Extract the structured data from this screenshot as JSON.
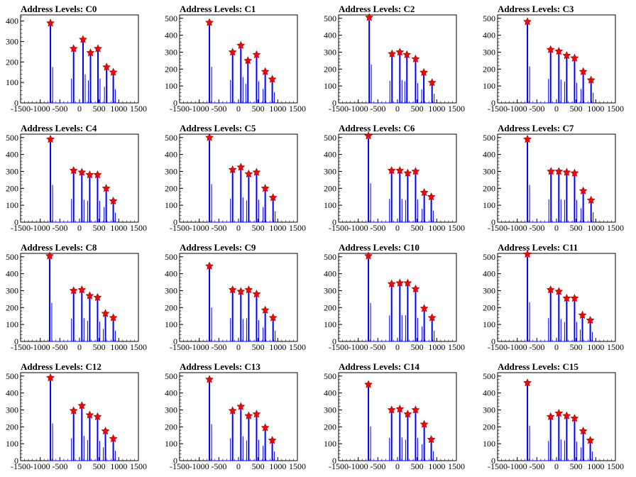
{
  "chart_data": [
    {
      "type": "line",
      "title": "Address Levels: C0",
      "xlim": [
        -1500,
        1500
      ],
      "ylim": [
        0,
        430
      ],
      "xticks": [
        -1500,
        -1000,
        -500,
        0,
        500,
        1000,
        1500
      ],
      "yticks": [
        0,
        100,
        200,
        300,
        400
      ],
      "peaks": [
        {
          "x": -740,
          "y": 390
        },
        {
          "x": -150,
          "y": 265
        },
        {
          "x": 90,
          "y": 310
        },
        {
          "x": 280,
          "y": 245
        },
        {
          "x": 470,
          "y": 265
        },
        {
          "x": 690,
          "y": 175
        },
        {
          "x": 860,
          "y": 150
        }
      ]
    },
    {
      "type": "line",
      "title": "Address Levels: C1",
      "xlim": [
        -1500,
        1500
      ],
      "ylim": [
        0,
        520
      ],
      "xticks": [
        -1500,
        -1000,
        -500,
        0,
        500,
        1000,
        1500
      ],
      "yticks": [
        0,
        100,
        200,
        300,
        400,
        500
      ],
      "peaks": [
        {
          "x": -740,
          "y": 475
        },
        {
          "x": -150,
          "y": 300
        },
        {
          "x": 60,
          "y": 340
        },
        {
          "x": 240,
          "y": 250
        },
        {
          "x": 460,
          "y": 285
        },
        {
          "x": 680,
          "y": 185
        },
        {
          "x": 860,
          "y": 140
        }
      ]
    },
    {
      "type": "line",
      "title": "Address Levels: C2",
      "xlim": [
        -1500,
        1500
      ],
      "ylim": [
        0,
        520
      ],
      "xticks": [
        -1500,
        -1000,
        -500,
        0,
        500,
        1000,
        1500
      ],
      "yticks": [
        0,
        100,
        200,
        300,
        400,
        500
      ],
      "peaks": [
        {
          "x": -720,
          "y": 505
        },
        {
          "x": -140,
          "y": 290
        },
        {
          "x": 60,
          "y": 300
        },
        {
          "x": 240,
          "y": 285
        },
        {
          "x": 460,
          "y": 260
        },
        {
          "x": 670,
          "y": 180
        },
        {
          "x": 880,
          "y": 120
        }
      ]
    },
    {
      "type": "line",
      "title": "Address Levels: C3",
      "xlim": [
        -1500,
        1500
      ],
      "ylim": [
        0,
        520
      ],
      "xticks": [
        -1500,
        -1000,
        -500,
        0,
        500,
        1000,
        1500
      ],
      "yticks": [
        0,
        100,
        200,
        300,
        400,
        500
      ],
      "peaks": [
        {
          "x": -740,
          "y": 480
        },
        {
          "x": -150,
          "y": 315
        },
        {
          "x": 60,
          "y": 305
        },
        {
          "x": 260,
          "y": 280
        },
        {
          "x": 460,
          "y": 265
        },
        {
          "x": 680,
          "y": 185
        },
        {
          "x": 880,
          "y": 135
        }
      ]
    },
    {
      "type": "line",
      "title": "Address Levels: C4",
      "xlim": [
        -1500,
        1500
      ],
      "ylim": [
        0,
        520
      ],
      "xticks": [
        -1500,
        -1000,
        -500,
        0,
        500,
        1000,
        1500
      ],
      "yticks": [
        0,
        100,
        200,
        300,
        400,
        500
      ],
      "peaks": [
        {
          "x": -740,
          "y": 490
        },
        {
          "x": -150,
          "y": 305
        },
        {
          "x": 60,
          "y": 295
        },
        {
          "x": 260,
          "y": 280
        },
        {
          "x": 460,
          "y": 280
        },
        {
          "x": 680,
          "y": 200
        },
        {
          "x": 860,
          "y": 125
        }
      ]
    },
    {
      "type": "line",
      "title": "Address Levels: C5",
      "xlim": [
        -1500,
        1500
      ],
      "ylim": [
        0,
        520
      ],
      "xticks": [
        -1500,
        -1000,
        -500,
        0,
        500,
        1000,
        1500
      ],
      "yticks": [
        0,
        100,
        200,
        300,
        400,
        500
      ],
      "peaks": [
        {
          "x": -740,
          "y": 500
        },
        {
          "x": -150,
          "y": 310
        },
        {
          "x": 60,
          "y": 325
        },
        {
          "x": 260,
          "y": 285
        },
        {
          "x": 460,
          "y": 295
        },
        {
          "x": 680,
          "y": 200
        },
        {
          "x": 880,
          "y": 145
        }
      ]
    },
    {
      "type": "line",
      "title": "Address Levels: C6",
      "xlim": [
        -1500,
        1500
      ],
      "ylim": [
        0,
        520
      ],
      "xticks": [
        -1500,
        -1000,
        -500,
        0,
        500,
        1000,
        1500
      ],
      "yticks": [
        0,
        100,
        200,
        300,
        400,
        500
      ],
      "peaks": [
        {
          "x": -740,
          "y": 510
        },
        {
          "x": -150,
          "y": 305
        },
        {
          "x": 60,
          "y": 305
        },
        {
          "x": 260,
          "y": 290
        },
        {
          "x": 460,
          "y": 300
        },
        {
          "x": 680,
          "y": 175
        },
        {
          "x": 860,
          "y": 150
        }
      ]
    },
    {
      "type": "line",
      "title": "Address Levels: C7",
      "xlim": [
        -1500,
        1500
      ],
      "ylim": [
        0,
        520
      ],
      "xticks": [
        -1500,
        -1000,
        -500,
        0,
        500,
        1000,
        1500
      ],
      "yticks": [
        0,
        100,
        200,
        300,
        400,
        500
      ],
      "peaks": [
        {
          "x": -740,
          "y": 490
        },
        {
          "x": -140,
          "y": 300
        },
        {
          "x": 60,
          "y": 300
        },
        {
          "x": 260,
          "y": 295
        },
        {
          "x": 460,
          "y": 290
        },
        {
          "x": 680,
          "y": 185
        },
        {
          "x": 880,
          "y": 130
        }
      ]
    },
    {
      "type": "line",
      "title": "Address Levels: C8",
      "xlim": [
        -1500,
        1500
      ],
      "ylim": [
        0,
        520
      ],
      "xticks": [
        -1500,
        -1000,
        -500,
        0,
        500,
        1000,
        1500
      ],
      "yticks": [
        0,
        100,
        200,
        300,
        400,
        500
      ],
      "peaks": [
        {
          "x": -760,
          "y": 505
        },
        {
          "x": -150,
          "y": 300
        },
        {
          "x": 60,
          "y": 305
        },
        {
          "x": 260,
          "y": 270
        },
        {
          "x": 460,
          "y": 260
        },
        {
          "x": 660,
          "y": 165
        },
        {
          "x": 860,
          "y": 140
        }
      ]
    },
    {
      "type": "line",
      "title": "Address Levels: C9",
      "xlim": [
        -1500,
        1500
      ],
      "ylim": [
        0,
        520
      ],
      "xticks": [
        -1500,
        -1000,
        -500,
        0,
        500,
        1000,
        1500
      ],
      "yticks": [
        0,
        100,
        200,
        300,
        400,
        500
      ],
      "peaks": [
        {
          "x": -740,
          "y": 445
        },
        {
          "x": -150,
          "y": 305
        },
        {
          "x": 60,
          "y": 295
        },
        {
          "x": 260,
          "y": 305
        },
        {
          "x": 460,
          "y": 280
        },
        {
          "x": 680,
          "y": 185
        },
        {
          "x": 880,
          "y": 140
        }
      ]
    },
    {
      "type": "line",
      "title": "Address Levels: C10",
      "xlim": [
        -1500,
        1500
      ],
      "ylim": [
        0,
        520
      ],
      "xticks": [
        -1500,
        -1000,
        -500,
        0,
        500,
        1000,
        1500
      ],
      "yticks": [
        0,
        100,
        200,
        300,
        400,
        500
      ],
      "peaks": [
        {
          "x": -740,
          "y": 505
        },
        {
          "x": -150,
          "y": 340
        },
        {
          "x": 60,
          "y": 345
        },
        {
          "x": 260,
          "y": 345
        },
        {
          "x": 460,
          "y": 310
        },
        {
          "x": 680,
          "y": 195
        },
        {
          "x": 880,
          "y": 140
        }
      ]
    },
    {
      "type": "line",
      "title": "Address Levels: C11",
      "xlim": [
        -1500,
        1500
      ],
      "ylim": [
        0,
        520
      ],
      "xticks": [
        -1500,
        -1000,
        -500,
        0,
        500,
        1000,
        1500
      ],
      "yticks": [
        0,
        100,
        200,
        300,
        400,
        500
      ],
      "peaks": [
        {
          "x": -740,
          "y": 515
        },
        {
          "x": -150,
          "y": 305
        },
        {
          "x": 60,
          "y": 295
        },
        {
          "x": 260,
          "y": 255
        },
        {
          "x": 460,
          "y": 255
        },
        {
          "x": 660,
          "y": 155
        },
        {
          "x": 860,
          "y": 125
        }
      ]
    },
    {
      "type": "line",
      "title": "Address Levels: C12",
      "xlim": [
        -1500,
        1500
      ],
      "ylim": [
        0,
        520
      ],
      "xticks": [
        -1500,
        -1000,
        -500,
        0,
        500,
        1000,
        1500
      ],
      "yticks": [
        0,
        100,
        200,
        300,
        400,
        500
      ],
      "peaks": [
        {
          "x": -740,
          "y": 490
        },
        {
          "x": -150,
          "y": 295
        },
        {
          "x": 60,
          "y": 325
        },
        {
          "x": 260,
          "y": 270
        },
        {
          "x": 460,
          "y": 260
        },
        {
          "x": 660,
          "y": 175
        },
        {
          "x": 860,
          "y": 130
        }
      ]
    },
    {
      "type": "line",
      "title": "Address Levels: C13",
      "xlim": [
        -1500,
        1500
      ],
      "ylim": [
        0,
        520
      ],
      "xticks": [
        -1500,
        -1000,
        -500,
        0,
        500,
        1000,
        1500
      ],
      "yticks": [
        0,
        100,
        200,
        300,
        400,
        500
      ],
      "peaks": [
        {
          "x": -740,
          "y": 480
        },
        {
          "x": -150,
          "y": 295
        },
        {
          "x": 60,
          "y": 320
        },
        {
          "x": 260,
          "y": 265
        },
        {
          "x": 460,
          "y": 275
        },
        {
          "x": 680,
          "y": 195
        },
        {
          "x": 860,
          "y": 120
        }
      ]
    },
    {
      "type": "line",
      "title": "Address Levels: C14",
      "xlim": [
        -1500,
        1500
      ],
      "ylim": [
        0,
        520
      ],
      "xticks": [
        -1500,
        -1000,
        -500,
        0,
        500,
        1000,
        1500
      ],
      "yticks": [
        0,
        100,
        200,
        300,
        400,
        500
      ],
      "peaks": [
        {
          "x": -740,
          "y": 450
        },
        {
          "x": -150,
          "y": 300
        },
        {
          "x": 60,
          "y": 305
        },
        {
          "x": 260,
          "y": 275
        },
        {
          "x": 460,
          "y": 300
        },
        {
          "x": 680,
          "y": 215
        },
        {
          "x": 860,
          "y": 125
        }
      ]
    },
    {
      "type": "line",
      "title": "Address Levels: C15",
      "xlim": [
        -1500,
        1500
      ],
      "ylim": [
        0,
        520
      ],
      "xticks": [
        -1500,
        -1000,
        -500,
        0,
        500,
        1000,
        1500
      ],
      "yticks": [
        0,
        100,
        200,
        300,
        400,
        500
      ],
      "peaks": [
        {
          "x": -740,
          "y": 460
        },
        {
          "x": -150,
          "y": 260
        },
        {
          "x": 60,
          "y": 280
        },
        {
          "x": 260,
          "y": 265
        },
        {
          "x": 460,
          "y": 250
        },
        {
          "x": 680,
          "y": 175
        },
        {
          "x": 860,
          "y": 120
        }
      ]
    }
  ],
  "colors": {
    "histogram": "#0000ff",
    "marker": "#ff0000",
    "axis": "#000000"
  }
}
